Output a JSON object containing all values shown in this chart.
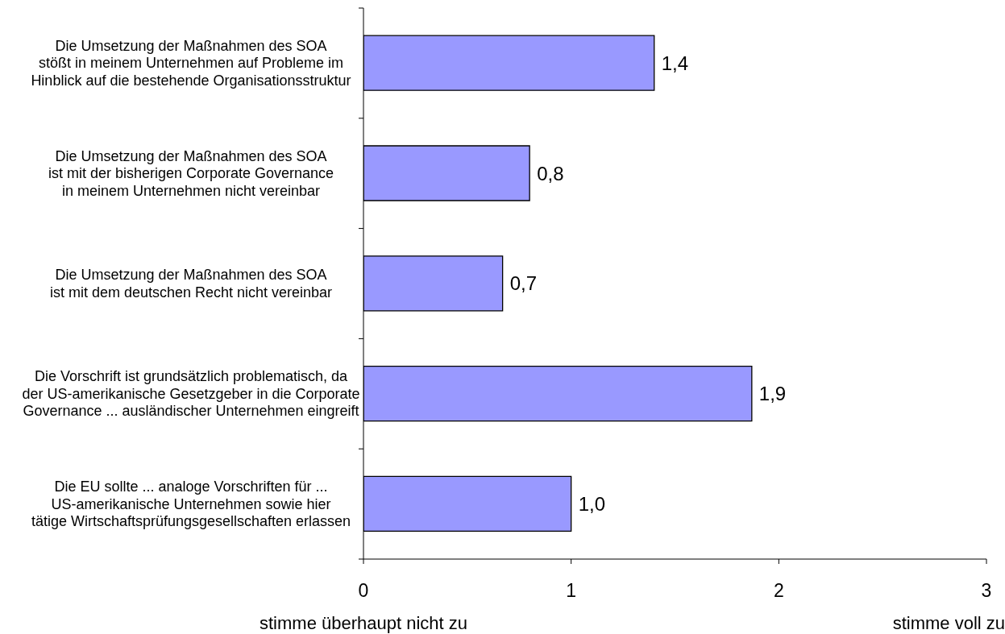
{
  "chart_data": {
    "type": "bar",
    "orientation": "horizontal",
    "categories": [
      "Die Umsetzung der Maßnahmen des SOA\nstößt in meinem Unternehmen auf Probleme im\nHinblick auf die bestehende Organisationsstruktur",
      "Die Umsetzung der Maßnahmen des SOA\nist mit der bisherigen Corporate Governance\nin meinem Unternehmen nicht vereinbar",
      "Die Umsetzung der Maßnahmen des SOA\nist mit dem deutschen Recht nicht vereinbar",
      "Die Vorschrift ist grundsätzlich problematisch, da\nder US-amerikanische Gesetzgeber in die Corporate\nGovernance ... ausländischer Unternehmen eingreift",
      "Die EU sollte ... analoge Vorschriften für ...\nUS-amerikanische Unternehmen sowie hier\ntätige Wirtschaftsprüfungsgesellschaften erlassen"
    ],
    "values": [
      1.4,
      0.8,
      0.67,
      1.87,
      1.0
    ],
    "value_labels": [
      "1,4",
      "0,8",
      "0,7",
      "1,9",
      "1,0"
    ],
    "color": "#9999ff",
    "xlim": [
      0,
      3
    ],
    "xticks": [
      0,
      1,
      2,
      3
    ],
    "annotations": [
      "stimme überhaupt nicht zu",
      "stimme voll zu"
    ]
  }
}
